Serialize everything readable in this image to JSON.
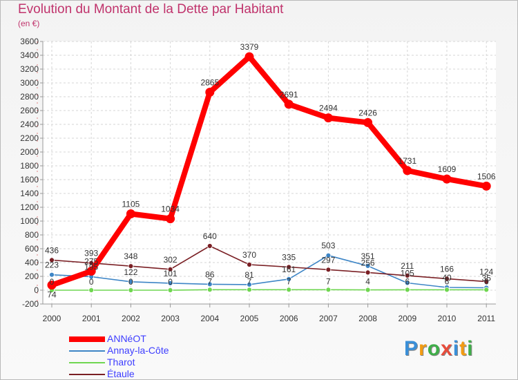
{
  "header": {
    "title": "Evolution du Montant de la Dette par Habitant",
    "subtitle": "(en €)"
  },
  "chart_data": {
    "type": "line",
    "title": "Evolution du Montant de la Dette par Habitant",
    "subtitle": "(en €)",
    "xlabel": "",
    "ylabel": "",
    "x": [
      2000,
      2001,
      2002,
      2003,
      2004,
      2005,
      2006,
      2007,
      2008,
      2009,
      2010,
      2011
    ],
    "ylim": [
      -200,
      3600
    ],
    "yticks": [
      -200,
      0,
      200,
      400,
      600,
      800,
      1000,
      1200,
      1400,
      1600,
      1800,
      2000,
      2200,
      2400,
      2600,
      2800,
      3000,
      3200,
      3400,
      3600
    ],
    "grid": true,
    "legend_position": "bottom-left",
    "series": [
      {
        "name": "ANNéOT",
        "color": "#ff0000",
        "values": [
          74,
          275,
          1105,
          1034,
          2865,
          3379,
          2691,
          2494,
          2426,
          1731,
          1609,
          1506
        ]
      },
      {
        "name": "Annay-la-Côte",
        "color": "#3d85c6",
        "values": [
          223,
          195,
          122,
          101,
          86,
          81,
          161,
          503,
          351,
          105,
          40,
          35
        ]
      },
      {
        "name": "Tharot",
        "color": "#6fd650",
        "values": [
          0,
          0,
          0,
          0,
          7,
          7,
          7,
          7,
          4,
          6,
          6,
          6
        ]
      },
      {
        "name": "Étaule",
        "color": "#7a1f24",
        "values": [
          436,
          393,
          348,
          302,
          640,
          370,
          335,
          297,
          256,
          211,
          166,
          124
        ]
      }
    ],
    "point_labels": [
      [
        "74",
        "275",
        "1105",
        "1034",
        "2865",
        "3379",
        "2691",
        "2494",
        "2426",
        "1731",
        "1609",
        "1506"
      ],
      [
        "223",
        "195",
        "122",
        "101",
        "86",
        "81",
        "161",
        "503",
        "351",
        "105",
        "40",
        "35"
      ],
      [
        "0",
        "0",
        "0",
        "0",
        "7",
        "7",
        "7",
        "7",
        "4",
        "6",
        "6",
        "6"
      ],
      [
        "436",
        "393",
        "348",
        "302",
        "640",
        "370",
        "335",
        "297",
        "256",
        "211",
        "166",
        "124"
      ]
    ]
  },
  "logo": {
    "letters": [
      "P",
      "r",
      "o",
      "x",
      "i",
      "t",
      "i"
    ],
    "colors": [
      "#3a8fd8",
      "#f39c12",
      "#3fae49",
      "#e74c3c",
      "#3a8fd8",
      "#f39c12",
      "#3fae49"
    ]
  }
}
